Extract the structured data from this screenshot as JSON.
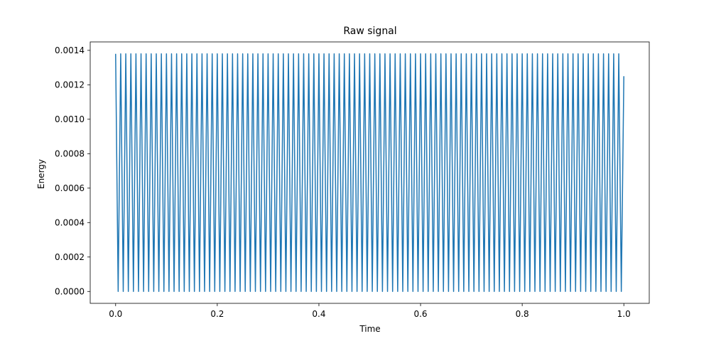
{
  "chart_data": {
    "type": "line",
    "title": "Raw signal",
    "xlabel": "Time",
    "ylabel": "Energy",
    "xlim": [
      -0.05,
      1.05
    ],
    "ylim": [
      -6.9e-05,
      0.001449
    ],
    "xticks": [
      0.0,
      0.2,
      0.4,
      0.6,
      0.8,
      1.0
    ],
    "xtick_labels": [
      "0.0",
      "0.2",
      "0.4",
      "0.6",
      "0.8",
      "1.0"
    ],
    "yticks": [
      0.0,
      0.0002,
      0.0004,
      0.0006,
      0.0008,
      0.001,
      0.0012,
      0.0014
    ],
    "ytick_labels": [
      "0.0000",
      "0.0002",
      "0.0004",
      "0.0006",
      "0.0008",
      "0.0010",
      "0.0012",
      "0.0014"
    ],
    "grid": false,
    "series": [
      {
        "color": "#1f77b4",
        "signal": {
          "form": "sawtooth",
          "cycles": 100,
          "x_start": 0.0,
          "x_end": 1.0,
          "peak": 0.00138,
          "trough": 0.0,
          "end_value": 0.00125
        }
      }
    ]
  }
}
